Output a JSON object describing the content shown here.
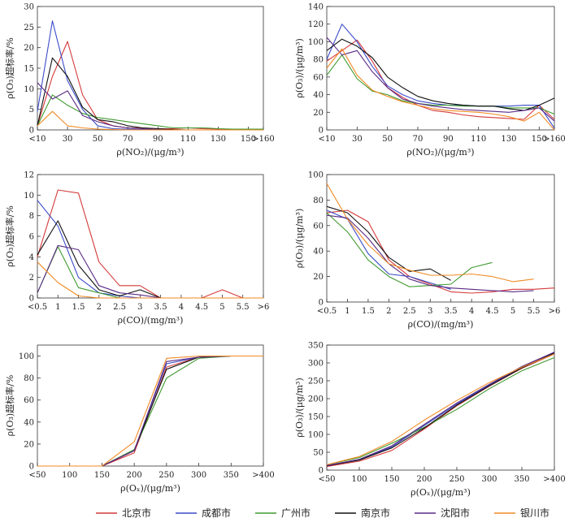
{
  "colors": {
    "北京市": "#d43a3a",
    "成都市": "#3b4bc8",
    "广州市": "#3f9a2f",
    "南京市": "#111111",
    "沈阳市": "#5a2a86",
    "银川市": "#f08a24"
  },
  "legend": [
    "北京市",
    "成都市",
    "广州市",
    "南京市",
    "沈阳市",
    "银川市"
  ],
  "chart_data": [
    {
      "type": "line",
      "xlabel": "ρ(NO₂)/(μg/m³)",
      "ylabel": "ρ(O₃)超标率/%",
      "ylim": [
        0,
        30
      ],
      "yticks": [
        0,
        5,
        10,
        15,
        20,
        25,
        30
      ],
      "xticks": [
        "<10",
        "30",
        "50",
        "70",
        "90",
        "110",
        "130",
        "150",
        ">160"
      ],
      "xtick_pos": [
        10,
        30,
        50,
        70,
        90,
        110,
        130,
        150,
        160
      ],
      "xlim": [
        10,
        160
      ],
      "x": [
        10,
        20,
        30,
        40,
        50,
        60,
        70,
        80,
        90,
        100,
        110,
        120,
        130,
        140,
        150,
        160
      ],
      "series": [
        {
          "name": "北京市",
          "values": [
            1,
            13,
            21.5,
            8.5,
            2.5,
            1,
            0.5,
            0.5,
            0.3,
            0.3,
            0.5,
            0.3,
            0.2,
            0.1,
            0.1,
            0.1
          ]
        },
        {
          "name": "成都市",
          "values": [
            4.5,
            26.5,
            12,
            5,
            1,
            0.3,
            0.2,
            0.1,
            0.1,
            0,
            0,
            0,
            0,
            0,
            0,
            0
          ]
        },
        {
          "name": "广州市",
          "values": [
            1,
            8.5,
            6,
            4,
            3,
            2.5,
            2,
            1.5,
            1,
            0.5,
            0.5,
            0.5,
            0.3,
            0.2,
            0.2,
            0.2
          ]
        },
        {
          "name": "南京市",
          "values": [
            1,
            17.5,
            13,
            5.5,
            2.5,
            2,
            1,
            0.5,
            0.3,
            0.1,
            0,
            0,
            0,
            0,
            0,
            0
          ]
        },
        {
          "name": "沈阳市",
          "values": [
            11.5,
            7.5,
            9.5,
            3.5,
            2,
            1,
            0.5,
            0.3,
            0.1,
            0,
            0,
            0,
            0,
            0,
            0,
            0
          ]
        },
        {
          "name": "银川市",
          "values": [
            1,
            4.5,
            1,
            0.5,
            0.2,
            0.1,
            0,
            0,
            0,
            0,
            0,
            0,
            0,
            0,
            0,
            0
          ]
        }
      ]
    },
    {
      "type": "line",
      "xlabel": "ρ(NO₂)/(μg/m³)",
      "ylabel": "ρ(O₃)/(μg/m³)",
      "ylim": [
        0,
        140
      ],
      "yticks": [
        0,
        20,
        40,
        60,
        80,
        100,
        120,
        140
      ],
      "xticks": [
        "<10",
        "30",
        "50",
        "70",
        "90",
        "110",
        "130",
        "150",
        ">160"
      ],
      "xtick_pos": [
        10,
        30,
        50,
        70,
        90,
        110,
        130,
        150,
        160
      ],
      "xlim": [
        10,
        160
      ],
      "x": [
        10,
        20,
        30,
        40,
        50,
        60,
        70,
        80,
        90,
        100,
        110,
        120,
        130,
        140,
        150,
        160
      ],
      "series": [
        {
          "name": "北京市",
          "values": [
            78,
            90,
            102,
            78,
            48,
            37,
            28,
            22,
            20,
            17,
            15,
            14,
            13,
            12,
            28,
            12
          ]
        },
        {
          "name": "成都市",
          "values": [
            80,
            120,
            100,
            72,
            50,
            40,
            33,
            30,
            28,
            28,
            27,
            27,
            27,
            28,
            28,
            2
          ]
        },
        {
          "name": "广州市",
          "values": [
            62,
            85,
            58,
            44,
            40,
            33,
            30,
            28,
            28,
            27,
            27,
            27,
            25,
            25,
            25,
            18
          ]
        },
        {
          "name": "南京市",
          "values": [
            90,
            103,
            95,
            82,
            60,
            48,
            38,
            33,
            30,
            28,
            27,
            27,
            24,
            22,
            28,
            36
          ]
        },
        {
          "name": "沈阳市",
          "values": [
            105,
            85,
            90,
            66,
            48,
            35,
            30,
            27,
            25,
            23,
            22,
            21,
            20,
            22,
            25,
            10
          ]
        },
        {
          "name": "银川市",
          "values": [
            70,
            92,
            62,
            45,
            38,
            32,
            28,
            24,
            22,
            21,
            20,
            18,
            15,
            10,
            20,
            0
          ]
        }
      ]
    },
    {
      "type": "line",
      "xlabel": "ρ(CO)/(mg/m³)",
      "ylabel": "ρ(O₃)超标率/%",
      "ylim": [
        0,
        12
      ],
      "yticks": [
        0,
        2,
        4,
        6,
        8,
        10,
        12
      ],
      "xticks": [
        "<0.5",
        "1",
        "1.5",
        "2",
        "2.5",
        "3",
        "3.5",
        "4",
        "4.5",
        "5",
        "5.5",
        ">6"
      ],
      "xtick_pos": [
        0.5,
        1,
        1.5,
        2,
        2.5,
        3,
        3.5,
        4,
        4.5,
        5,
        5.5,
        6
      ],
      "xlim": [
        0.5,
        6
      ],
      "x": [
        0.5,
        1,
        1.5,
        2,
        2.5,
        3,
        3.5,
        4,
        4.5,
        5,
        5.5,
        6
      ],
      "series": [
        {
          "name": "北京市",
          "values": [
            4,
            10.5,
            10.2,
            3.5,
            1.2,
            1.2,
            0,
            0,
            0,
            0.8,
            0,
            0
          ]
        },
        {
          "name": "成都市",
          "values": [
            9.5,
            7,
            2,
            0.5,
            0.2,
            0,
            0,
            0,
            0,
            0,
            0,
            0
          ]
        },
        {
          "name": "广州市",
          "values": [
            0.5,
            5,
            1,
            0.5,
            0,
            0,
            0,
            0,
            0,
            0,
            0,
            0
          ]
        },
        {
          "name": "南京市",
          "values": [
            4.2,
            7.5,
            3.2,
            0.8,
            0.2,
            0.8,
            0,
            0,
            0,
            0,
            0,
            0
          ]
        },
        {
          "name": "沈阳市",
          "values": [
            0.5,
            5.1,
            4.7,
            1.2,
            0.5,
            0.3,
            0,
            0,
            0,
            0,
            0,
            0
          ]
        },
        {
          "name": "银川市",
          "values": [
            3.5,
            1.5,
            0.2,
            0,
            0,
            0,
            0,
            0,
            0,
            0,
            0,
            0
          ]
        }
      ]
    },
    {
      "type": "line",
      "xlabel": "ρ(CO)/(mg/m³)",
      "ylabel": "ρ(O₃)/(μg/m³)",
      "ylim": [
        0,
        100
      ],
      "yticks": [
        0,
        20,
        40,
        60,
        80,
        100
      ],
      "xticks": [
        "<0.5",
        "1",
        "1.5",
        "2",
        "2.5",
        "3",
        "3.5",
        "4",
        "4.5",
        "5",
        "5.5",
        ">6"
      ],
      "xtick_pos": [
        0.5,
        1,
        1.5,
        2,
        2.5,
        3,
        3.5,
        4,
        4.5,
        5,
        5.5,
        6
      ],
      "xlim": [
        0.5,
        6
      ],
      "series_x": [
        [
          0.5,
          1,
          1.5,
          2,
          2.5,
          3,
          3.5,
          4,
          4.5,
          5,
          5.5,
          6
        ],
        [
          0.5,
          1,
          1.5,
          2,
          2.5,
          3,
          3.5
        ],
        [
          0.5,
          1,
          1.5,
          2,
          2.5,
          3,
          3.5,
          4,
          4.5
        ],
        [
          0.5,
          1,
          1.5,
          2,
          2.5,
          3,
          3.5
        ],
        [
          0.5,
          1,
          1.5,
          2,
          2.5,
          3,
          3.5,
          4,
          4.5,
          5,
          5.5
        ],
        [
          0.5,
          1,
          1.5,
          2,
          2.5,
          3,
          3.5,
          4,
          4.5,
          5,
          5.5
        ]
      ],
      "series": [
        {
          "name": "北京市",
          "values": [
            70,
            72,
            63,
            33,
            20,
            14,
            8,
            7,
            8,
            10,
            10,
            11
          ]
        },
        {
          "name": "成都市",
          "values": [
            72,
            65,
            38,
            22,
            20,
            15,
            10
          ]
        },
        {
          "name": "广州市",
          "values": [
            70,
            55,
            33,
            20,
            12,
            13,
            14,
            27,
            31
          ]
        },
        {
          "name": "南京市",
          "values": [
            75,
            70,
            55,
            35,
            24,
            26,
            17
          ]
        },
        {
          "name": "沈阳市",
          "values": [
            68,
            66,
            50,
            30,
            18,
            13,
            11,
            10,
            9,
            8,
            9
          ]
        },
        {
          "name": "银川市",
          "values": [
            93,
            65,
            45,
            30,
            25,
            21,
            21,
            22,
            20,
            16,
            18
          ]
        }
      ]
    },
    {
      "type": "line",
      "xlabel": "ρ(Oₓ)/(μg/m³)",
      "ylabel": "ρ(O₃)超标率/%",
      "ylim": [
        0,
        110
      ],
      "yticks": [
        0,
        20,
        40,
        60,
        80,
        100
      ],
      "xticks": [
        "<50",
        "100",
        "150",
        "200",
        "250",
        "300",
        "350",
        ">400"
      ],
      "xtick_pos": [
        50,
        100,
        150,
        200,
        250,
        300,
        350,
        400
      ],
      "xlim": [
        50,
        400
      ],
      "x": [
        50,
        100,
        150,
        200,
        250,
        300,
        350,
        400
      ],
      "series": [
        {
          "name": "北京市",
          "values": [
            0,
            0,
            0,
            12,
            90,
            99,
            100,
            100
          ]
        },
        {
          "name": "成都市",
          "values": [
            0,
            0,
            0,
            14,
            93,
            99,
            100,
            100
          ]
        },
        {
          "name": "广州市",
          "values": [
            0,
            0,
            0,
            15,
            80,
            98,
            100,
            100
          ]
        },
        {
          "name": "南京市",
          "values": [
            0,
            0,
            0,
            14,
            88,
            99,
            100,
            100
          ]
        },
        {
          "name": "沈阳市",
          "values": [
            0,
            0,
            0,
            14,
            95,
            99,
            100,
            100
          ]
        },
        {
          "name": "银川市",
          "values": [
            0,
            0,
            0,
            22,
            98,
            100,
            100,
            100
          ]
        }
      ]
    },
    {
      "type": "line",
      "xlabel": "ρ(Oₓ)/(μg/m³)",
      "ylabel": "ρ(O₃)/(μg/m³)",
      "ylim": [
        0,
        350
      ],
      "yticks": [
        0,
        50,
        100,
        150,
        200,
        250,
        300,
        350
      ],
      "xticks": [
        "<50",
        "100",
        "150",
        "200",
        "250",
        "300",
        "350",
        ">400"
      ],
      "xtick_pos": [
        50,
        100,
        150,
        200,
        250,
        300,
        350,
        400
      ],
      "xlim": [
        50,
        400
      ],
      "x": [
        50,
        100,
        150,
        200,
        250,
        300,
        350,
        400
      ],
      "series": [
        {
          "name": "北京市",
          "values": [
            10,
            25,
            55,
            115,
            180,
            235,
            285,
            325
          ]
        },
        {
          "name": "成都市",
          "values": [
            12,
            30,
            65,
            125,
            185,
            238,
            288,
            330
          ]
        },
        {
          "name": "广州市",
          "values": [
            15,
            35,
            75,
            120,
            170,
            228,
            278,
            315
          ]
        },
        {
          "name": "南京市",
          "values": [
            12,
            28,
            62,
            118,
            182,
            236,
            286,
            328
          ]
        },
        {
          "name": "沈阳市",
          "values": [
            13,
            30,
            68,
            128,
            188,
            240,
            290,
            330
          ]
        },
        {
          "name": "银川市",
          "values": [
            15,
            38,
            80,
            140,
            195,
            245,
            288,
            325
          ]
        }
      ]
    }
  ]
}
